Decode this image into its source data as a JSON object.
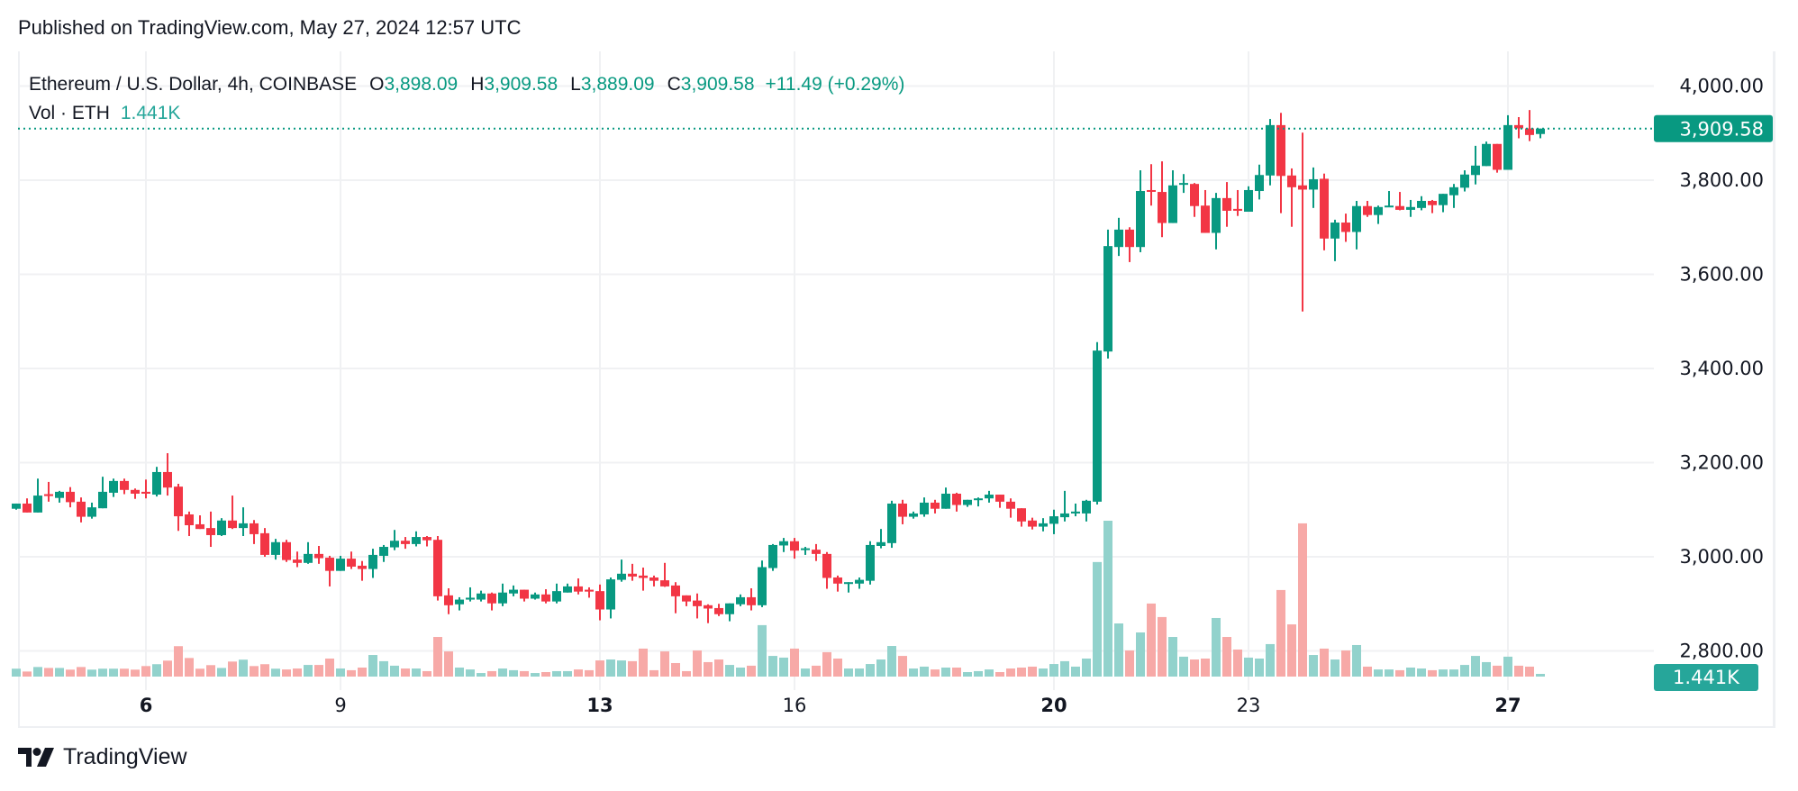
{
  "header": {
    "published": "Published on TradingView.com, May 27, 2024 12:57 UTC"
  },
  "legend": {
    "symbol": "Ethereum / U.S. Dollar, 4h, COINBASE",
    "o_label": "O",
    "o_value": "3,898.09",
    "h_label": "H",
    "h_value": "3,909.58",
    "l_label": "L",
    "l_value": "3,889.09",
    "c_label": "C",
    "c_value": "3,909.58",
    "change": "+11.49 (+0.29%)",
    "vol_label": "Vol · ETH",
    "vol_value": "1.441K"
  },
  "footer": {
    "brand": "TradingView"
  },
  "colors": {
    "up": "#089981",
    "down": "#F23645",
    "vol_up": "#92d2cc",
    "vol_down": "#f7a9a7",
    "vol_tag": "#26a69a",
    "grid": "#f0f1f3"
  },
  "chart_data": {
    "type": "candlestick",
    "title": "Ethereum / U.S. Dollar, 4h, COINBASE",
    "interval": "4h",
    "ylim": [
      2800,
      4000
    ],
    "y_ticks": [
      "2,800.00",
      "3,000.00",
      "3,200.00",
      "3,400.00",
      "3,600.00",
      "3,800.00",
      "4,000.00"
    ],
    "y_tick_values": [
      2800,
      3000,
      3200,
      3400,
      3600,
      3800,
      4000
    ],
    "x_ticks": [
      {
        "label": "6",
        "bold": true
      },
      {
        "label": "9",
        "bold": false
      },
      {
        "label": "13",
        "bold": true
      },
      {
        "label": "16",
        "bold": false
      },
      {
        "label": "20",
        "bold": true
      },
      {
        "label": "23",
        "bold": false
      },
      {
        "label": "27",
        "bold": true
      }
    ],
    "grid": true,
    "last_price": 3909.58,
    "last_price_label": "3,909.58",
    "last_volume_label": "1.441K",
    "ohlc": [
      [
        3102,
        3113,
        3100,
        3113
      ],
      [
        3113,
        3124,
        3094,
        3094
      ],
      [
        3094,
        3166,
        3094,
        3130
      ],
      [
        3133,
        3159,
        3117,
        3129
      ],
      [
        3125,
        3140,
        3115,
        3138
      ],
      [
        3138,
        3148,
        3105,
        3116
      ],
      [
        3117,
        3126,
        3073,
        3085
      ],
      [
        3085,
        3115,
        3081,
        3105
      ],
      [
        3103,
        3170,
        3103,
        3138
      ],
      [
        3136,
        3166,
        3127,
        3161
      ],
      [
        3161,
        3166,
        3133,
        3142
      ],
      [
        3142,
        3145,
        3123,
        3134
      ],
      [
        3138,
        3164,
        3124,
        3134
      ],
      [
        3132,
        3191,
        3128,
        3180
      ],
      [
        3180,
        3220,
        3130,
        3147
      ],
      [
        3149,
        3155,
        3055,
        3086
      ],
      [
        3090,
        3096,
        3044,
        3067
      ],
      [
        3069,
        3088,
        3059,
        3059
      ],
      [
        3061,
        3096,
        3021,
        3046
      ],
      [
        3046,
        3082,
        3044,
        3077
      ],
      [
        3077,
        3130,
        3059,
        3061
      ],
      [
        3061,
        3105,
        3044,
        3071
      ],
      [
        3071,
        3078,
        3027,
        3048
      ],
      [
        3050,
        3061,
        3000,
        3004
      ],
      [
        3004,
        3038,
        2994,
        3031
      ],
      [
        3031,
        3036,
        2989,
        2993
      ],
      [
        2994,
        3011,
        2978,
        2987
      ],
      [
        2987,
        3031,
        2985,
        3006
      ],
      [
        3006,
        3023,
        2985,
        2997
      ],
      [
        2998,
        3002,
        2937,
        2970
      ],
      [
        2970,
        3002,
        2970,
        2996
      ],
      [
        2996,
        3011,
        2974,
        2979
      ],
      [
        2981,
        2991,
        2949,
        2974
      ],
      [
        2974,
        3017,
        2955,
        3004
      ],
      [
        3002,
        3025,
        2989,
        3021
      ],
      [
        3020,
        3057,
        3014,
        3034
      ],
      [
        3034,
        3042,
        3017,
        3027
      ],
      [
        3027,
        3054,
        3022,
        3042
      ],
      [
        3042,
        3044,
        3022,
        3035
      ],
      [
        3036,
        3044,
        2907,
        2916
      ],
      [
        2918,
        2933,
        2878,
        2897
      ],
      [
        2899,
        2914,
        2886,
        2909
      ],
      [
        2909,
        2935,
        2905,
        2913
      ],
      [
        2909,
        2928,
        2905,
        2922
      ],
      [
        2922,
        2924,
        2886,
        2901
      ],
      [
        2901,
        2943,
        2895,
        2924
      ],
      [
        2922,
        2939,
        2916,
        2930
      ],
      [
        2930,
        2930,
        2905,
        2911
      ],
      [
        2911,
        2924,
        2909,
        2920
      ],
      [
        2920,
        2931,
        2901,
        2905
      ],
      [
        2905,
        2943,
        2901,
        2927
      ],
      [
        2924,
        2943,
        2924,
        2937
      ],
      [
        2937,
        2954,
        2920,
        2926
      ],
      [
        2930,
        2935,
        2913,
        2926
      ],
      [
        2927,
        2941,
        2865,
        2888
      ],
      [
        2888,
        2956,
        2869,
        2952
      ],
      [
        2951,
        2994,
        2947,
        2964
      ],
      [
        2964,
        2985,
        2949,
        2958
      ],
      [
        2960,
        2977,
        2928,
        2955
      ],
      [
        2956,
        2960,
        2937,
        2949
      ],
      [
        2950,
        2987,
        2936,
        2937
      ],
      [
        2939,
        2946,
        2880,
        2916
      ],
      [
        2918,
        2918,
        2895,
        2905
      ],
      [
        2907,
        2922,
        2869,
        2895
      ],
      [
        2897,
        2899,
        2859,
        2890
      ],
      [
        2891,
        2900,
        2874,
        2878
      ],
      [
        2878,
        2901,
        2863,
        2901
      ],
      [
        2899,
        2920,
        2895,
        2914
      ],
      [
        2914,
        2933,
        2886,
        2897
      ],
      [
        2897,
        2992,
        2893,
        2978
      ],
      [
        2976,
        3027,
        2970,
        3025
      ],
      [
        3024,
        3040,
        3010,
        3033
      ],
      [
        3033,
        3040,
        2996,
        3013
      ],
      [
        3015,
        3021,
        3004,
        3018
      ],
      [
        3015,
        3027,
        2991,
        3006
      ],
      [
        3006,
        3010,
        2932,
        2955
      ],
      [
        2956,
        2960,
        2926,
        2943
      ],
      [
        2943,
        2946,
        2924,
        2946
      ],
      [
        2943,
        2956,
        2932,
        2951
      ],
      [
        2949,
        3033,
        2941,
        3025
      ],
      [
        3023,
        3059,
        3018,
        3031
      ],
      [
        3029,
        3119,
        3019,
        3113
      ],
      [
        3113,
        3121,
        3069,
        3085
      ],
      [
        3085,
        3096,
        3081,
        3092
      ],
      [
        3090,
        3126,
        3085,
        3115
      ],
      [
        3115,
        3121,
        3092,
        3102
      ],
      [
        3102,
        3147,
        3102,
        3134
      ],
      [
        3134,
        3136,
        3096,
        3110
      ],
      [
        3110,
        3121,
        3106,
        3121
      ],
      [
        3121,
        3126,
        3107,
        3124
      ],
      [
        3124,
        3140,
        3115,
        3132
      ],
      [
        3132,
        3132,
        3104,
        3117
      ],
      [
        3117,
        3124,
        3083,
        3102
      ],
      [
        3103,
        3103,
        3064,
        3075
      ],
      [
        3077,
        3083,
        3058,
        3064
      ],
      [
        3064,
        3082,
        3054,
        3071
      ],
      [
        3070,
        3100,
        3048,
        3086
      ],
      [
        3084,
        3140,
        3075,
        3092
      ],
      [
        3092,
        3113,
        3086,
        3096
      ],
      [
        3092,
        3121,
        3075,
        3119
      ],
      [
        3117,
        3456,
        3111,
        3438
      ],
      [
        3436,
        3695,
        3421,
        3660
      ],
      [
        3658,
        3720,
        3639,
        3695
      ],
      [
        3695,
        3700,
        3626,
        3658
      ],
      [
        3658,
        3821,
        3647,
        3777
      ],
      [
        3779,
        3834,
        3746,
        3776
      ],
      [
        3775,
        3840,
        3679,
        3709
      ],
      [
        3709,
        3821,
        3709,
        3789
      ],
      [
        3791,
        3813,
        3773,
        3794
      ],
      [
        3792,
        3794,
        3722,
        3745
      ],
      [
        3746,
        3779,
        3688,
        3688
      ],
      [
        3688,
        3773,
        3653,
        3762
      ],
      [
        3762,
        3796,
        3701,
        3735
      ],
      [
        3739,
        3779,
        3724,
        3735
      ],
      [
        3733,
        3787,
        3733,
        3779
      ],
      [
        3777,
        3833,
        3759,
        3811
      ],
      [
        3810,
        3930,
        3789,
        3917
      ],
      [
        3917,
        3943,
        3730,
        3809
      ],
      [
        3810,
        3825,
        3701,
        3785
      ],
      [
        3789,
        3901,
        3521,
        3780
      ],
      [
        3780,
        3827,
        3741,
        3802
      ],
      [
        3803,
        3814,
        3651,
        3676
      ],
      [
        3676,
        3716,
        3628,
        3710
      ],
      [
        3710,
        3729,
        3669,
        3690
      ],
      [
        3690,
        3756,
        3653,
        3745
      ],
      [
        3745,
        3756,
        3722,
        3726
      ],
      [
        3726,
        3746,
        3707,
        3743
      ],
      [
        3743,
        3777,
        3743,
        3746
      ],
      [
        3745,
        3775,
        3736,
        3737
      ],
      [
        3737,
        3758,
        3722,
        3743
      ],
      [
        3741,
        3766,
        3736,
        3756
      ],
      [
        3756,
        3758,
        3730,
        3747
      ],
      [
        3747,
        3771,
        3732,
        3771
      ],
      [
        3768,
        3792,
        3741,
        3785
      ],
      [
        3784,
        3821,
        3776,
        3812
      ],
      [
        3811,
        3873,
        3791,
        3831
      ],
      [
        3830,
        3882,
        3830,
        3877
      ],
      [
        3877,
        3877,
        3816,
        3822
      ],
      [
        3822,
        3938,
        3822,
        3917
      ],
      [
        3917,
        3934,
        3889,
        3910
      ],
      [
        3910,
        3949,
        3883,
        3896
      ],
      [
        3898.09,
        3909.58,
        3889.09,
        3909.58
      ]
    ],
    "volume_k": [
      4.2,
      2.7,
      5.1,
      4.6,
      4.6,
      3.7,
      5.1,
      3.7,
      4.2,
      4.2,
      4.2,
      3.7,
      5.6,
      6.6,
      8.5,
      16.2,
      9.9,
      4.2,
      6.1,
      4.6,
      8.0,
      9.0,
      5.6,
      6.6,
      4.2,
      3.8,
      4.3,
      6.2,
      6.2,
      9.6,
      4.3,
      3.4,
      4.8,
      11.5,
      8.2,
      5.8,
      4.3,
      4.3,
      2.9,
      21.1,
      13.4,
      4.8,
      3.8,
      1.9,
      2.9,
      4.3,
      3.4,
      2.9,
      1.9,
      2.4,
      2.9,
      2.9,
      3.8,
      3.4,
      8.6,
      9.1,
      8.6,
      8.2,
      14.9,
      3.4,
      13.4,
      7.2,
      2.9,
      13.9,
      7.7,
      9.1,
      6.2,
      4.8,
      5.8,
      27.4,
      11.0,
      10.1,
      14.9,
      4.3,
      5.8,
      13.0,
      9.6,
      4.3,
      4.3,
      6.7,
      9.1,
      16.3,
      11.0,
      4.3,
      5.3,
      3.8,
      4.8,
      4.8,
      2.4,
      2.9,
      3.8,
      2.4,
      4.3,
      4.8,
      5.3,
      4.3,
      6.7,
      8.2,
      5.3,
      9.6,
      61.0,
      83.0,
      28.3,
      13.9,
      23.5,
      38.9,
      31.7,
      21.1,
      10.6,
      9.1,
      9.6,
      31.2,
      21.1,
      14.4,
      10.1,
      9.6,
      17.3,
      46.1,
      27.8,
      81.6,
      11.5,
      14.9,
      9.1,
      13.9,
      16.8,
      5.3,
      3.8,
      3.8,
      3.4,
      4.8,
      4.3,
      3.4,
      3.8,
      3.8,
      6.2,
      11.0,
      7.7,
      5.8,
      10.6,
      5.8,
      5.3,
      1.441
    ]
  }
}
